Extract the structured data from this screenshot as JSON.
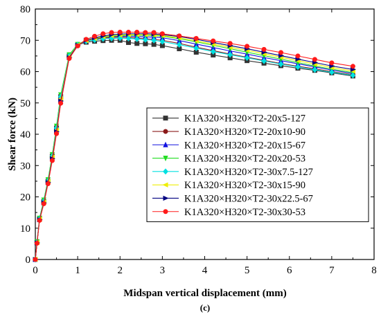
{
  "chart_data": {
    "type": "line",
    "xlabel": "Midspan vertical displacement (mm)",
    "ylabel": "Shear force (kN)",
    "caption": "(c)",
    "xlim": [
      0,
      8
    ],
    "ylim": [
      0,
      80
    ],
    "xticks": [
      0,
      1,
      2,
      3,
      4,
      5,
      6,
      7,
      8
    ],
    "yticks": [
      0,
      10,
      20,
      30,
      40,
      50,
      60,
      70,
      80
    ],
    "legend_position": "bottom-right",
    "grid": false,
    "x": [
      0,
      0.04,
      0.1,
      0.2,
      0.3,
      0.4,
      0.5,
      0.6,
      0.8,
      1.0,
      1.2,
      1.4,
      1.6,
      1.8,
      2.0,
      2.2,
      2.4,
      2.6,
      2.8,
      3.0,
      3.4,
      3.8,
      4.2,
      4.6,
      5.0,
      5.4,
      5.8,
      6.2,
      6.6,
      7.0,
      7.5
    ],
    "series": [
      {
        "name": "K1A320×H320×T2-20x5-127",
        "color": "#333333",
        "marker": "square",
        "values": [
          0,
          5.5,
          13,
          18.5,
          25,
          33,
          42,
          52,
          65,
          68.5,
          69.4,
          69.7,
          69.9,
          70.0,
          70.0,
          69.3,
          69.0,
          68.9,
          68.7,
          68.3,
          67.3,
          66.2,
          65.3,
          64.4,
          63.5,
          62.7,
          61.9,
          61.1,
          60.4,
          59.6,
          58.6
        ]
      },
      {
        "name": "K1A320×H320×T2-20x10-90",
        "color": "#8b1a1a",
        "marker": "circle",
        "values": [
          0,
          5.4,
          12.8,
          18.2,
          24.8,
          32.5,
          41,
          51,
          64.6,
          68.4,
          69.8,
          70.3,
          70.7,
          70.9,
          71.0,
          70.9,
          70.7,
          70.5,
          70.3,
          70.0,
          69.0,
          67.8,
          66.7,
          65.6,
          64.6,
          63.6,
          62.6,
          61.7,
          60.9,
          60.0,
          59.0
        ]
      },
      {
        "name": "K1A320×H320×T2-20x15-67",
        "color": "#1010e0",
        "marker": "triangle-up",
        "values": [
          0,
          5.6,
          13.1,
          18.7,
          25.3,
          33.2,
          42.3,
          52.3,
          65.1,
          68.6,
          69.9,
          70.5,
          71.0,
          71.2,
          71.3,
          71.3,
          71.2,
          71.1,
          71.0,
          70.8,
          69.9,
          68.8,
          67.7,
          66.6,
          65.6,
          64.5,
          63.5,
          62.5,
          61.5,
          60.5,
          59.4
        ]
      },
      {
        "name": "K1A320×H320×T2-20x20-53",
        "color": "#22dd22",
        "marker": "triangle-down",
        "values": [
          0,
          5.7,
          13.2,
          19,
          25.5,
          33.5,
          42.6,
          52.6,
          65.4,
          68.7,
          70.0,
          70.6,
          71.0,
          71.3,
          71.5,
          71.6,
          71.6,
          71.6,
          71.5,
          71.3,
          70.5,
          69.5,
          68.4,
          67.3,
          66.2,
          65.1,
          64.0,
          62.9,
          61.8,
          60.8,
          59.7
        ]
      },
      {
        "name": "K1A320×H320×T2-30x7.5-127",
        "color": "#00e0e0",
        "marker": "diamond",
        "values": [
          0,
          5.5,
          12.9,
          18.6,
          25.1,
          33.0,
          42.0,
          52.0,
          65.0,
          68.5,
          69.7,
          70.1,
          70.5,
          70.6,
          70.7,
          70.6,
          70.4,
          70.2,
          70.0,
          69.6,
          68.6,
          67.5,
          66.4,
          65.4,
          64.4,
          63.4,
          62.4,
          61.5,
          60.6,
          59.8,
          58.8
        ]
      },
      {
        "name": "K1A320×H320×T2-30x15-90",
        "color": "#eeee00",
        "marker": "triangle-left",
        "values": [
          0,
          5.4,
          12.8,
          18.3,
          24.9,
          32.7,
          41.3,
          51.3,
          64.8,
          68.5,
          69.9,
          70.6,
          71.2,
          71.5,
          71.7,
          71.8,
          71.8,
          71.8,
          71.7,
          71.5,
          70.8,
          69.8,
          68.8,
          67.8,
          66.8,
          65.7,
          64.6,
          63.5,
          62.4,
          61.3,
          60.2
        ]
      },
      {
        "name": "K1A320×H320×T2-30x22.5-67",
        "color": "#000080",
        "marker": "triangle-right",
        "values": [
          0,
          5.3,
          12.7,
          18.1,
          24.6,
          32.2,
          40.8,
          50.6,
          64.5,
          68.4,
          70.0,
          70.8,
          71.4,
          71.8,
          72.0,
          72.1,
          72.1,
          72.1,
          72.0,
          71.8,
          71.2,
          70.3,
          69.3,
          68.3,
          67.3,
          66.2,
          65.1,
          64.0,
          62.9,
          61.8,
          60.7
        ]
      },
      {
        "name": "K1A320×H320×T2-30x30-53",
        "color": "#ff1a1a",
        "marker": "circle",
        "values": [
          0,
          5.2,
          12.5,
          17.8,
          24.2,
          31.6,
          40.2,
          49.9,
          64.2,
          68.2,
          70.3,
          71.3,
          72.1,
          72.5,
          72.6,
          72.6,
          72.6,
          72.5,
          72.5,
          72.1,
          71.4,
          70.6,
          69.8,
          69.0,
          68.1,
          67.1,
          66.1,
          65.0,
          63.9,
          62.8,
          61.7
        ]
      }
    ]
  }
}
